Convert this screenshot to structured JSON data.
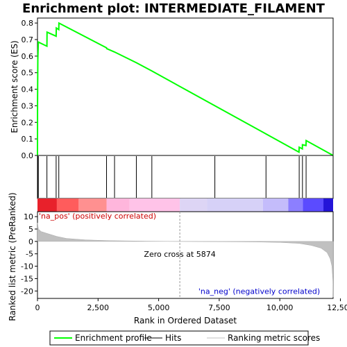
{
  "chart_data": {
    "type": "line",
    "title": "Enrichment plot: INTERMEDIATE_FILAMENT",
    "total_rank": 12200,
    "x_ticks": [
      "0",
      "2,500",
      "5,000",
      "7,500",
      "10,000",
      "12,500"
    ],
    "x_tick_values": [
      0,
      2500,
      5000,
      7500,
      10000,
      12500
    ],
    "xlabel": "Rank in Ordered Dataset",
    "enrichment_panel": {
      "ylabel": "Enrichment score (ES)",
      "ylim": [
        0.0,
        0.83
      ],
      "y_ticks": [
        "0.0",
        "0.1",
        "0.2",
        "0.3",
        "0.4",
        "0.5",
        "0.6",
        "0.7",
        "0.8"
      ],
      "y_tick_values": [
        0.0,
        0.1,
        0.2,
        0.3,
        0.4,
        0.5,
        0.6,
        0.7,
        0.8
      ],
      "series": [
        {
          "name": "Enrichment profile",
          "color": "#00ff00",
          "points": [
            [
              0,
              0.0
            ],
            [
              2,
              0.31
            ],
            [
              14,
              0.58
            ],
            [
              35,
              0.685
            ],
            [
              390,
              0.66
            ],
            [
              395,
              0.745
            ],
            [
              770,
              0.72
            ],
            [
              775,
              0.77
            ],
            [
              880,
              0.76
            ],
            [
              885,
              0.8
            ],
            [
              2850,
              0.65
            ],
            [
              2855,
              0.645
            ],
            [
              3180,
              0.625
            ],
            [
              4080,
              0.56
            ],
            [
              4720,
              0.51
            ],
            [
              7320,
              0.3
            ],
            [
              9430,
              0.13
            ],
            [
              10790,
              0.02
            ],
            [
              10800,
              0.05
            ],
            [
              10930,
              0.04
            ],
            [
              10935,
              0.065
            ],
            [
              11080,
              0.06
            ],
            [
              11085,
              0.09
            ],
            [
              12200,
              0.0
            ]
          ]
        }
      ]
    },
    "hits": [
      0,
      10,
      20,
      35,
      390,
      770,
      880,
      2850,
      3180,
      4080,
      4720,
      7320,
      9430,
      10800,
      10935,
      11085
    ],
    "ranked_metric_panel": {
      "ylabel": "Ranked list metric (PreRanked)",
      "ylim": [
        -23,
        12
      ],
      "y_ticks": [
        "10",
        "5",
        "0",
        "-5",
        "-10",
        "-15",
        "-20"
      ],
      "y_tick_values": [
        10,
        5,
        0,
        -5,
        -10,
        -15,
        -20
      ],
      "series": [
        {
          "name": "Ranking metric scores",
          "color": "#c0c0c0",
          "points": [
            [
              0,
              7.5
            ],
            [
              40,
              5.0
            ],
            [
              150,
              4.0
            ],
            [
              400,
              3.2
            ],
            [
              800,
              2.0
            ],
            [
              1200,
              1.2
            ],
            [
              2000,
              0.6
            ],
            [
              3000,
              0.3
            ],
            [
              4500,
              0.1
            ],
            [
              5874,
              0.0
            ],
            [
              7500,
              -0.1
            ],
            [
              9000,
              -0.2
            ],
            [
              10000,
              -0.4
            ],
            [
              10800,
              -0.8
            ],
            [
              11300,
              -1.6
            ],
            [
              11700,
              -2.7
            ],
            [
              11950,
              -4.5
            ],
            [
              12080,
              -7.0
            ],
            [
              12150,
              -10.0
            ],
            [
              12190,
              -16.0
            ],
            [
              12200,
              -22.5
            ]
          ]
        }
      ],
      "annotations": {
        "pos_label": "'na_pos' (positively correlated)",
        "neg_label": "'na_neg' (negatively correlated)",
        "zero_cross_label": "Zero cross at 5874",
        "zero_cross": 5874,
        "pos_color": "#cc0000",
        "neg_color": "#0000cc"
      }
    },
    "heatmap_bar": [
      {
        "from": 0,
        "to": 800,
        "color": "#e8212b"
      },
      {
        "from": 800,
        "to": 1700,
        "color": "#ff5c5c"
      },
      {
        "from": 1700,
        "to": 2850,
        "color": "#ff9090"
      },
      {
        "from": 2850,
        "to": 3800,
        "color": "#ffb6dc"
      },
      {
        "from": 3800,
        "to": 5874,
        "color": "#ffc3e8"
      },
      {
        "from": 5874,
        "to": 7000,
        "color": "#ddd5f5"
      },
      {
        "from": 7000,
        "to": 9300,
        "color": "#d6d1f7"
      },
      {
        "from": 9300,
        "to": 10350,
        "color": "#c4bcfb"
      },
      {
        "from": 10350,
        "to": 10950,
        "color": "#8c7fff"
      },
      {
        "from": 10950,
        "to": 11800,
        "color": "#5b4bff"
      },
      {
        "from": 11800,
        "to": 12200,
        "color": "#2414d8"
      }
    ],
    "legend": {
      "placement": "bottom",
      "entries": [
        {
          "label": "Enrichment profile",
          "color": "#00ff00"
        },
        {
          "label": "Hits",
          "color": "#000000"
        },
        {
          "label": "Ranking metric scores",
          "color": "#c0c0c0"
        }
      ]
    }
  }
}
